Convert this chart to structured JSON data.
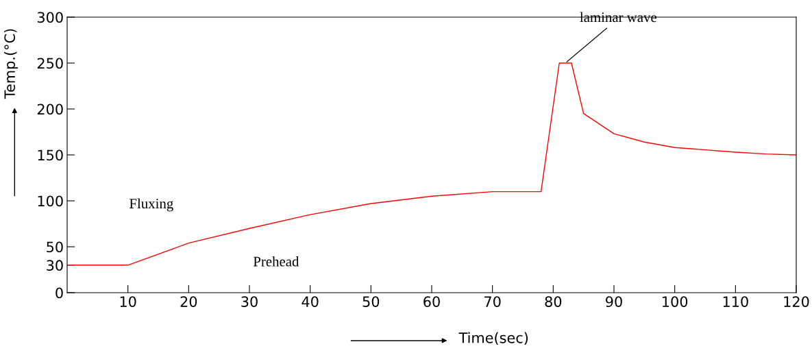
{
  "chart_data": {
    "type": "line",
    "xlabel": "Time(sec)",
    "ylabel": "Temp.(°C)",
    "series": [
      {
        "color": "#ff0000",
        "x": [
          0,
          10,
          20,
          30,
          40,
          50,
          60,
          70,
          78,
          81,
          83,
          85,
          90,
          95,
          100,
          110,
          115,
          120
        ],
        "values": [
          30,
          30,
          54,
          70,
          85,
          97,
          105,
          110,
          110,
          250,
          250,
          195,
          173,
          164,
          158,
          153,
          151,
          150
        ]
      }
    ],
    "xlim": [
      0,
      120
    ],
    "xticks": [
      10,
      20,
      30,
      40,
      50,
      60,
      70,
      80,
      90,
      100,
      110,
      120
    ],
    "ylim": [
      0,
      300
    ],
    "yticks": [
      0,
      30,
      50,
      100,
      150,
      200,
      250,
      300
    ],
    "annotations": [
      "Fluxing",
      "Prehead",
      {
        "text": "laminar wave",
        "x": 82,
        "y": 250
      }
    ],
    "grid": false,
    "legend": false,
    "marker": "none",
    "line_style": "solid"
  }
}
